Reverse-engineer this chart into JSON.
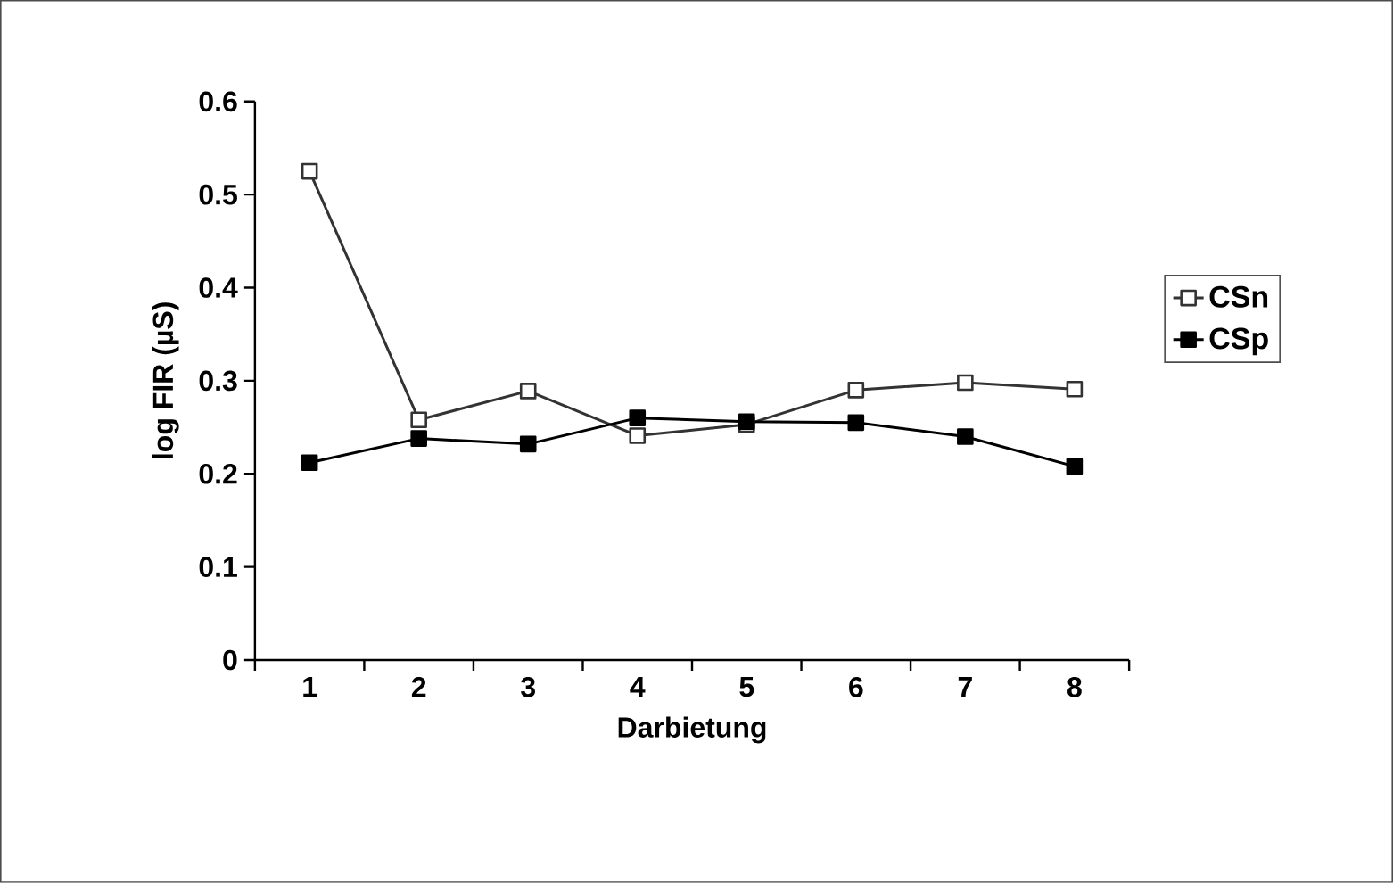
{
  "chart_data": {
    "type": "line",
    "xlabel": "Darbietung",
    "ylabel": "log FIR (µS)",
    "categories": [
      "1",
      "2",
      "3",
      "4",
      "5",
      "6",
      "7",
      "8"
    ],
    "series": [
      {
        "name": "CSn",
        "color": "#333333",
        "marker": "square",
        "values": [
          0.525,
          0.258,
          0.289,
          0.241,
          0.253,
          0.29,
          0.298,
          0.291
        ]
      },
      {
        "name": "CSp",
        "color": "#000000",
        "marker": "square",
        "values": [
          0.212,
          0.238,
          0.232,
          0.26,
          0.256,
          0.255,
          0.24,
          0.208
        ]
      }
    ],
    "ylim": [
      0,
      0.6
    ],
    "yticks": [
      0,
      0.1,
      0.2,
      0.3,
      0.4,
      0.5,
      0.6
    ],
    "legend": "right",
    "grid": false,
    "line_style": "solid"
  }
}
